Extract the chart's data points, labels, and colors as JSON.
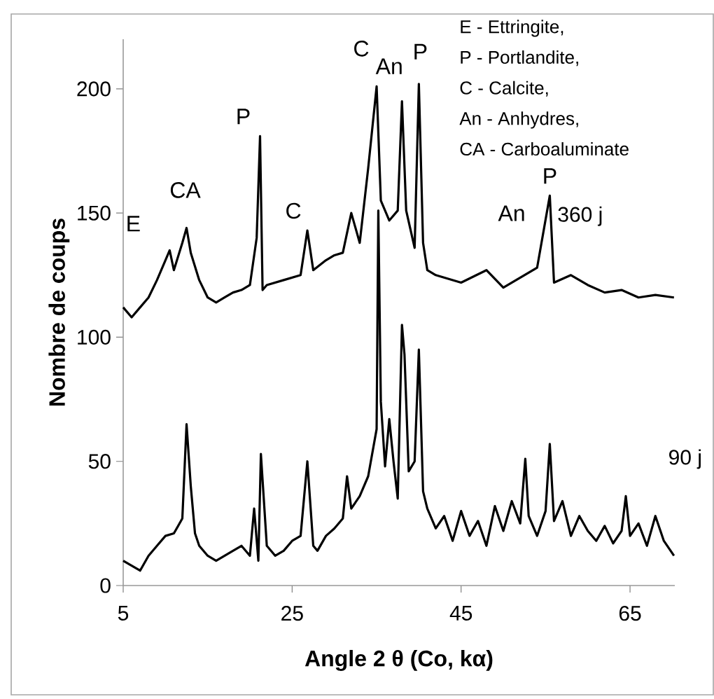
{
  "chart_data": {
    "type": "line",
    "xlabel": "Angle 2 θ (Co, kα)",
    "ylabel": "Nombre de coups",
    "xlim": [
      5,
      70.3
    ],
    "ylim": [
      0,
      220
    ],
    "xticks": [
      5,
      25,
      45,
      65
    ],
    "yticks": [
      0,
      50,
      100,
      150,
      200
    ],
    "series": [
      {
        "name": "360 j",
        "color": "#000000",
        "x": [
          5,
          6,
          7,
          8,
          9,
          10,
          10.5,
          11,
          12,
          12.5,
          13,
          14,
          15,
          16,
          17,
          18,
          19,
          20,
          20.8,
          21.2,
          21.5,
          22,
          24,
          26,
          26.8,
          27.5,
          29,
          30,
          31,
          32,
          33,
          34,
          35,
          35.5,
          36.5,
          37.5,
          38,
          38.5,
          39.5,
          40,
          40.5,
          41,
          42,
          45,
          48,
          50,
          52,
          54,
          55.5,
          56,
          58,
          60,
          62,
          64,
          66,
          68,
          70.2
        ],
        "values": [
          112,
          108,
          112,
          116,
          123,
          131,
          135,
          127,
          138,
          144,
          134,
          123,
          116,
          114,
          116,
          118,
          119,
          121,
          140,
          181,
          119,
          121,
          123,
          125,
          143,
          127,
          131,
          133,
          134,
          150,
          138,
          168,
          201,
          155,
          147,
          151,
          195,
          151,
          136,
          202,
          138,
          127,
          125,
          122,
          127,
          120,
          124,
          128,
          157,
          122,
          125,
          121,
          118,
          119,
          116,
          117,
          116
        ]
      },
      {
        "name": "90 j",
        "color": "#000000",
        "x": [
          5,
          6,
          7,
          8,
          9,
          10,
          11,
          12,
          12.5,
          13,
          13.5,
          14,
          15,
          16,
          17,
          18,
          19,
          20,
          20.5,
          21,
          21.3,
          22,
          23,
          24,
          25,
          26,
          26.8,
          27.5,
          28,
          29,
          30,
          31,
          31.5,
          32,
          33,
          34,
          35,
          35.2,
          35.5,
          36,
          36.5,
          37,
          37.5,
          38,
          38.3,
          38.8,
          39.5,
          40,
          40.5,
          41,
          42,
          43,
          44,
          45,
          46,
          47,
          48,
          49,
          50,
          51,
          52,
          52.6,
          53,
          54,
          55,
          55.5,
          56,
          57,
          58,
          59,
          60,
          61,
          62,
          63,
          64,
          64.5,
          65,
          66,
          67,
          68,
          69,
          70.2
        ],
        "values": [
          10,
          8,
          6,
          12,
          16,
          20,
          21,
          27,
          65,
          40,
          21,
          16,
          12,
          10,
          12,
          14,
          16,
          12,
          31,
          10,
          53,
          16,
          12,
          14,
          18,
          20,
          50,
          16,
          14,
          20,
          23,
          27,
          44,
          31,
          36,
          44,
          63,
          151,
          74,
          48,
          67,
          50,
          35,
          105,
          93,
          46,
          50,
          95,
          38,
          31,
          23,
          28,
          18,
          30,
          20,
          26,
          16,
          32,
          22,
          34,
          25,
          51,
          28,
          20,
          30,
          57,
          26,
          34,
          20,
          28,
          22,
          18,
          24,
          17,
          22,
          36,
          20,
          25,
          16,
          28,
          18,
          12
        ]
      }
    ],
    "annotations": [
      {
        "text": "E",
        "x": 10.5,
        "y": 135
      },
      {
        "text": "CA",
        "x": 12.5,
        "y": 144
      },
      {
        "text": "P",
        "x": 21.2,
        "y": 181
      },
      {
        "text": "C",
        "x": 26.8,
        "y": 143
      },
      {
        "text": "C",
        "x": 35,
        "y": 201
      },
      {
        "text": "An",
        "x": 38,
        "y": 195
      },
      {
        "text": "P",
        "x": 40,
        "y": 202
      },
      {
        "text": "An",
        "x": 50,
        "y": 120
      },
      {
        "text": "P",
        "x": 55.5,
        "y": 157
      },
      "E - Ettringite,",
      "P - Portlandite,",
      "C - Calcite,",
      "An - Anhydres,",
      "CA - Carboaluminate"
    ]
  }
}
